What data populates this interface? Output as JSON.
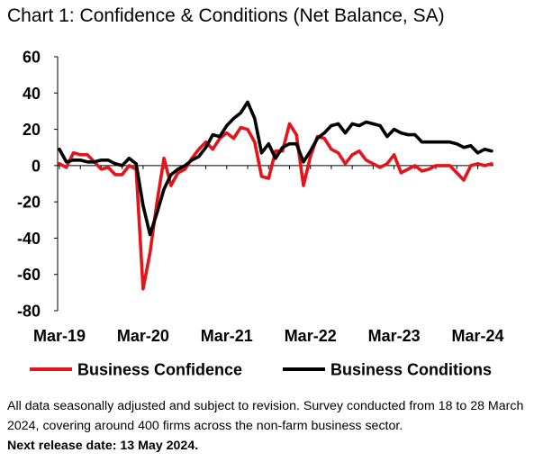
{
  "chart_data": {
    "type": "line",
    "title": "Chart 1: Confidence & Conditions (Net Balance, SA)",
    "xlabel": "",
    "ylabel": "",
    "ylim": [
      -80,
      60
    ],
    "yticks": [
      60,
      40,
      20,
      0,
      -20,
      -40,
      -60,
      -80
    ],
    "xtick_labels": [
      "Mar-19",
      "Mar-20",
      "Mar-21",
      "Mar-22",
      "Mar-23",
      "Mar-24"
    ],
    "grid": false,
    "legend_position": "bottom",
    "series": [
      {
        "name": "Business Confidence",
        "color": "#e4141b",
        "values": [
          1,
          -1,
          7,
          6,
          6,
          2,
          -2,
          -1,
          -5,
          -5,
          0,
          -2,
          -68,
          -48,
          -20,
          4,
          -11,
          -4,
          -2,
          4,
          9,
          13,
          9,
          15,
          18,
          15,
          21,
          20,
          13,
          -6,
          -7,
          8,
          8,
          23,
          17,
          -11,
          5,
          16,
          15,
          9,
          7,
          1,
          6,
          8,
          3,
          1,
          -1,
          1,
          6,
          -4,
          -2,
          0,
          -3,
          -2,
          0,
          0,
          0,
          -4,
          -8,
          0,
          1,
          0,
          1
        ]
      },
      {
        "name": "Business Conditions",
        "color": "#000000",
        "values": [
          9,
          2,
          3,
          3,
          2,
          2,
          3,
          3,
          1,
          0,
          4,
          1,
          -22,
          -38,
          -26,
          -13,
          -5,
          -2,
          0,
          3,
          5,
          10,
          17,
          16,
          22,
          26,
          29,
          35,
          26,
          7,
          12,
          4,
          10,
          12,
          12,
          2,
          8,
          15,
          18,
          22,
          23,
          18,
          23,
          22,
          24,
          23,
          22,
          16,
          20,
          18,
          17,
          17,
          13,
          13,
          13,
          13,
          13,
          12,
          10,
          11,
          7,
          9,
          8
        ]
      }
    ]
  },
  "legend": {
    "confidence": "Business Confidence",
    "conditions": "Business Conditions"
  },
  "note": {
    "text": "All data seasonally adjusted and subject to revision. Survey conducted from 18 to 28 March 2024, covering around 400 firms across the non-farm business sector.",
    "release": "Next release date: 13 May 2024."
  }
}
